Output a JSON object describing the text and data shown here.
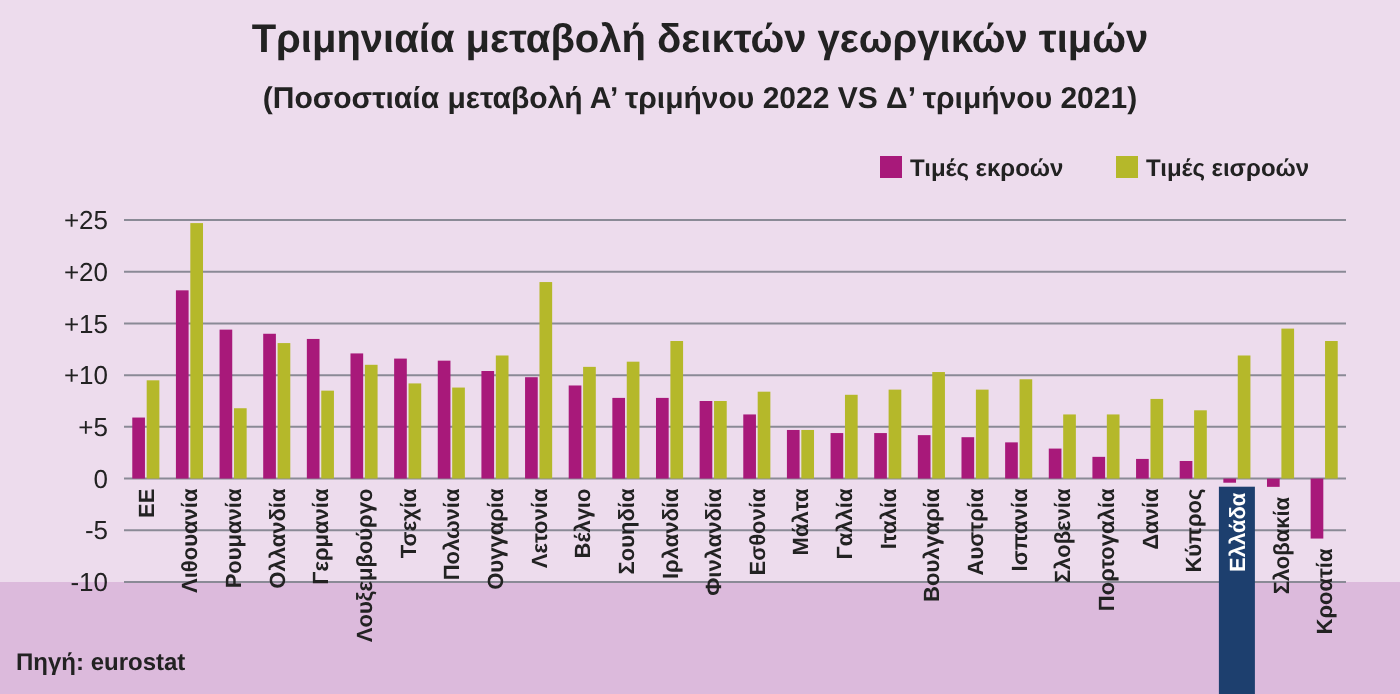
{
  "chart_data": {
    "type": "bar",
    "title": "Τριμηνιαία μεταβολή δεικτών γεωργικών τιμών",
    "subtitle": "(Ποσοστιαία μεταβολή Α’ τριμήνου 2022 VS Δ’ τριμήνου 2021)",
    "categories": [
      "ΕΕ",
      "Λιθουανία",
      "Ρουμανία",
      "Ολλανδία",
      "Γερμανία",
      "Λουξεμβούργο",
      "Τσεχία",
      "Πολωνία",
      "Ουγγαρία",
      "Λετονία",
      "Βέλγιο",
      "Σουηδία",
      "Ιρλανδία",
      "Φινλανδία",
      "Εσθονία",
      "Μάλτα",
      "Γαλλία",
      "Ιταλία",
      "Βουλγαρία",
      "Αυστρία",
      "Ισπανία",
      "Σλοβενία",
      "Πορτογαλία",
      "Δανία",
      "Κύπρος",
      "Ελλάδα",
      "Σλοβακία",
      "Κροατία"
    ],
    "series": [
      {
        "name": "Τιμές εκροών",
        "color": "#a8197a",
        "values": [
          5.9,
          18.2,
          14.4,
          14.0,
          13.5,
          12.1,
          11.6,
          11.4,
          10.4,
          9.8,
          9.0,
          7.8,
          7.8,
          7.5,
          6.2,
          4.7,
          4.4,
          4.4,
          4.2,
          4.0,
          3.5,
          2.9,
          2.1,
          1.9,
          1.7,
          -0.4,
          -0.8,
          -5.8
        ]
      },
      {
        "name": "Τιμές εισροών",
        "color": "#b5b82a",
        "values": [
          9.5,
          24.7,
          6.8,
          13.1,
          8.5,
          11.0,
          9.2,
          8.8,
          11.9,
          19.0,
          10.8,
          11.3,
          13.3,
          7.5,
          8.4,
          4.7,
          8.1,
          8.6,
          10.3,
          8.6,
          9.6,
          6.2,
          6.2,
          7.7,
          6.6,
          11.9,
          14.5,
          13.3
        ]
      }
    ],
    "ylim": [
      -10,
      25
    ],
    "yticks": [
      -10,
      -5,
      {
        "value": 0,
        "label": "0"
      },
      {
        "value": 5,
        "label": "+5"
      },
      {
        "value": 10,
        "label": "+10"
      },
      {
        "value": 15,
        "label": "+15"
      },
      {
        "value": 20,
        "label": "+20"
      },
      {
        "value": 25,
        "label": "+25"
      }
    ],
    "grid": "y",
    "legend": "top right",
    "annotations": [
      "Πηγή: eurostat"
    ]
  }
}
